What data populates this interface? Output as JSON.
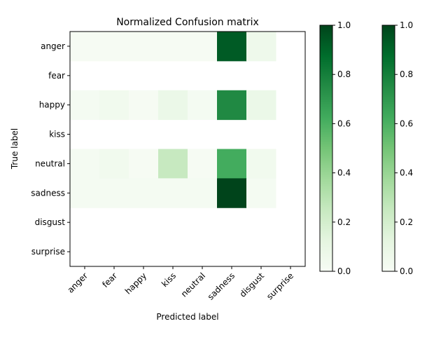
{
  "chart_data": {
    "type": "heatmap",
    "title": "Normalized Confusion matrix",
    "xlabel": "Predicted label",
    "ylabel": "True label",
    "x_categories": [
      "anger",
      "fear",
      "happy",
      "kiss",
      "neutral",
      "sadness",
      "disgust",
      "surprise"
    ],
    "y_categories": [
      "anger",
      "fear",
      "happy",
      "kiss",
      "neutral",
      "sadness",
      "disgust",
      "surprise"
    ],
    "matrix": [
      [
        0.01,
        0.01,
        0.01,
        0.01,
        0.01,
        0.93,
        0.06,
        null
      ],
      [
        null,
        null,
        null,
        null,
        null,
        null,
        null,
        null
      ],
      [
        0.02,
        0.04,
        0.01,
        0.08,
        0.02,
        0.76,
        0.08,
        null
      ],
      [
        null,
        null,
        null,
        null,
        null,
        null,
        null,
        null
      ],
      [
        0.02,
        0.04,
        0.01,
        0.25,
        0.01,
        0.62,
        0.04,
        null
      ],
      [
        0.02,
        0.02,
        0.02,
        0.02,
        0.02,
        1.0,
        0.02,
        null
      ],
      [
        null,
        null,
        null,
        null,
        null,
        null,
        null,
        null
      ],
      [
        null,
        null,
        null,
        null,
        null,
        null,
        null,
        null
      ]
    ],
    "colormap": "Greens",
    "vmin": 0,
    "vmax": 1,
    "colorbars": [
      {
        "ticks": [
          "0.0",
          "0.2",
          "0.4",
          "0.6",
          "0.8",
          "1.0"
        ]
      },
      {
        "ticks": [
          "0.0",
          "0.2",
          "0.4",
          "0.6",
          "0.8",
          "1.0"
        ]
      }
    ]
  }
}
